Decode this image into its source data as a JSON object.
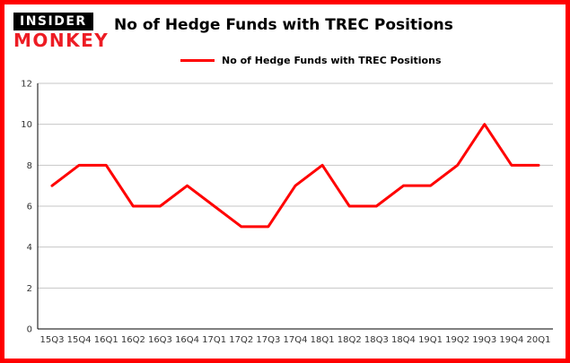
{
  "brand": {
    "top": "INSIDER",
    "bottom": "MONKEY"
  },
  "header": {
    "title": "No of Hedge Funds with TREC Positions"
  },
  "legend": {
    "label": "No of Hedge Funds with TREC Positions"
  },
  "colors": {
    "border": "#ff0000",
    "line": "#ff0000",
    "brand_red": "#ed1c24",
    "brand_black": "#000000",
    "grid": "#c6c6c6",
    "axis": "#000000",
    "tick_text": "#333333"
  },
  "chart_data": {
    "type": "line",
    "title": "No of Hedge Funds with TREC Positions",
    "categories": [
      "15Q3",
      "15Q4",
      "16Q1",
      "16Q2",
      "16Q3",
      "16Q4",
      "17Q1",
      "17Q2",
      "17Q3",
      "17Q4",
      "18Q1",
      "18Q2",
      "18Q3",
      "18Q4",
      "19Q1",
      "19Q2",
      "19Q3",
      "19Q4",
      "20Q1"
    ],
    "series": [
      {
        "name": "No of Hedge Funds with TREC Positions",
        "values": [
          7,
          8,
          8,
          6,
          6,
          7,
          6,
          5,
          5,
          7,
          8,
          6,
          6,
          7,
          7,
          8,
          10,
          8,
          8
        ]
      }
    ],
    "xlabel": "",
    "ylabel": "",
    "ylim": [
      0,
      12
    ],
    "yticks": [
      0,
      2,
      4,
      6,
      8,
      10,
      12
    ],
    "grid": true,
    "legend_position": "top-left"
  }
}
